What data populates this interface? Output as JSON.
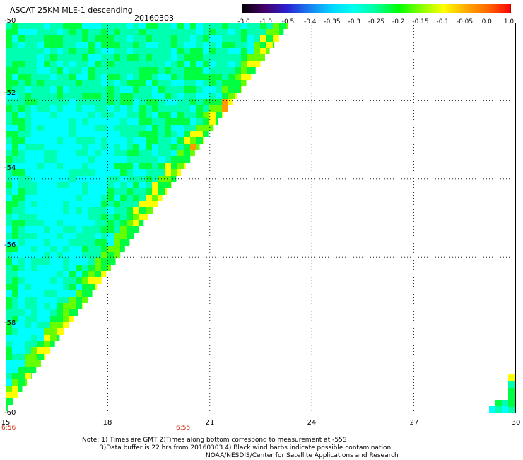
{
  "header": {
    "title": "ASCAT 25KM MLE-1 descending",
    "date": "20160303"
  },
  "colorbar": {
    "labels": [
      "-3.0",
      "-1.0",
      "-0.5",
      "-0.4",
      "-0.35",
      "-0.3",
      "-0.25",
      "-0.2",
      "-0.15",
      "-0.1",
      "-0.05",
      "0.0",
      "1.0"
    ],
    "colors": [
      "#000000",
      "#440066",
      "#2a1fd0",
      "#1a7cf0",
      "#00d4ff",
      "#00ffee",
      "#00ff99",
      "#00ff00",
      "#88ff00",
      "#ffff00",
      "#ffaa00",
      "#ff6600",
      "#ff0000"
    ]
  },
  "map": {
    "lat_labels": [
      "-50",
      "-52",
      "-54",
      "-56",
      "-58",
      "-60"
    ],
    "lon_labels": [
      "15",
      "18",
      "21",
      "24",
      "27",
      "30"
    ],
    "gmt_times": [
      "6:56",
      "6:55"
    ],
    "lat_range": [
      -60,
      -50
    ],
    "lon_range": [
      15,
      30
    ],
    "grid": "dotted",
    "swath_colors": {
      "cyan": "#00ffff",
      "aqua_green": "#00ffb0",
      "green": "#00ff40",
      "lime": "#66ff00",
      "yellow": "#ffff00",
      "orange": "#ff9900"
    }
  },
  "notes": [
    "Note: 1) Times are GMT 2)Times along bottom correspond to measurement at -55S",
    "3)Data buffer is 22 hrs from 20160303 4) Black wind barbs indicate possible contamination",
    "NOAA/NESDIS/Center for Satellite Applications and Research"
  ]
}
